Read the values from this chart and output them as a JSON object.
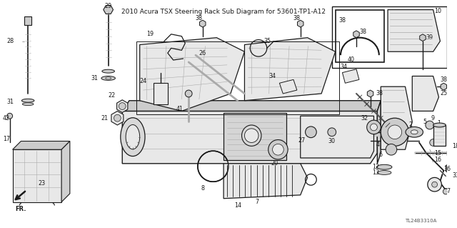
{
  "title": "2010 Acura TSX Steering Rack Sub Diagram for 53601-TP1-A12",
  "diagram_code": "TL24B3310A",
  "bg": "#ffffff",
  "fg": "#1a1a1a",
  "gray1": "#cccccc",
  "gray2": "#e8e8e8",
  "gray3": "#aaaaaa",
  "gray4": "#555555",
  "lw_main": 0.9,
  "lw_thin": 0.5,
  "lw_thick": 1.4,
  "label_fs": 5.8
}
